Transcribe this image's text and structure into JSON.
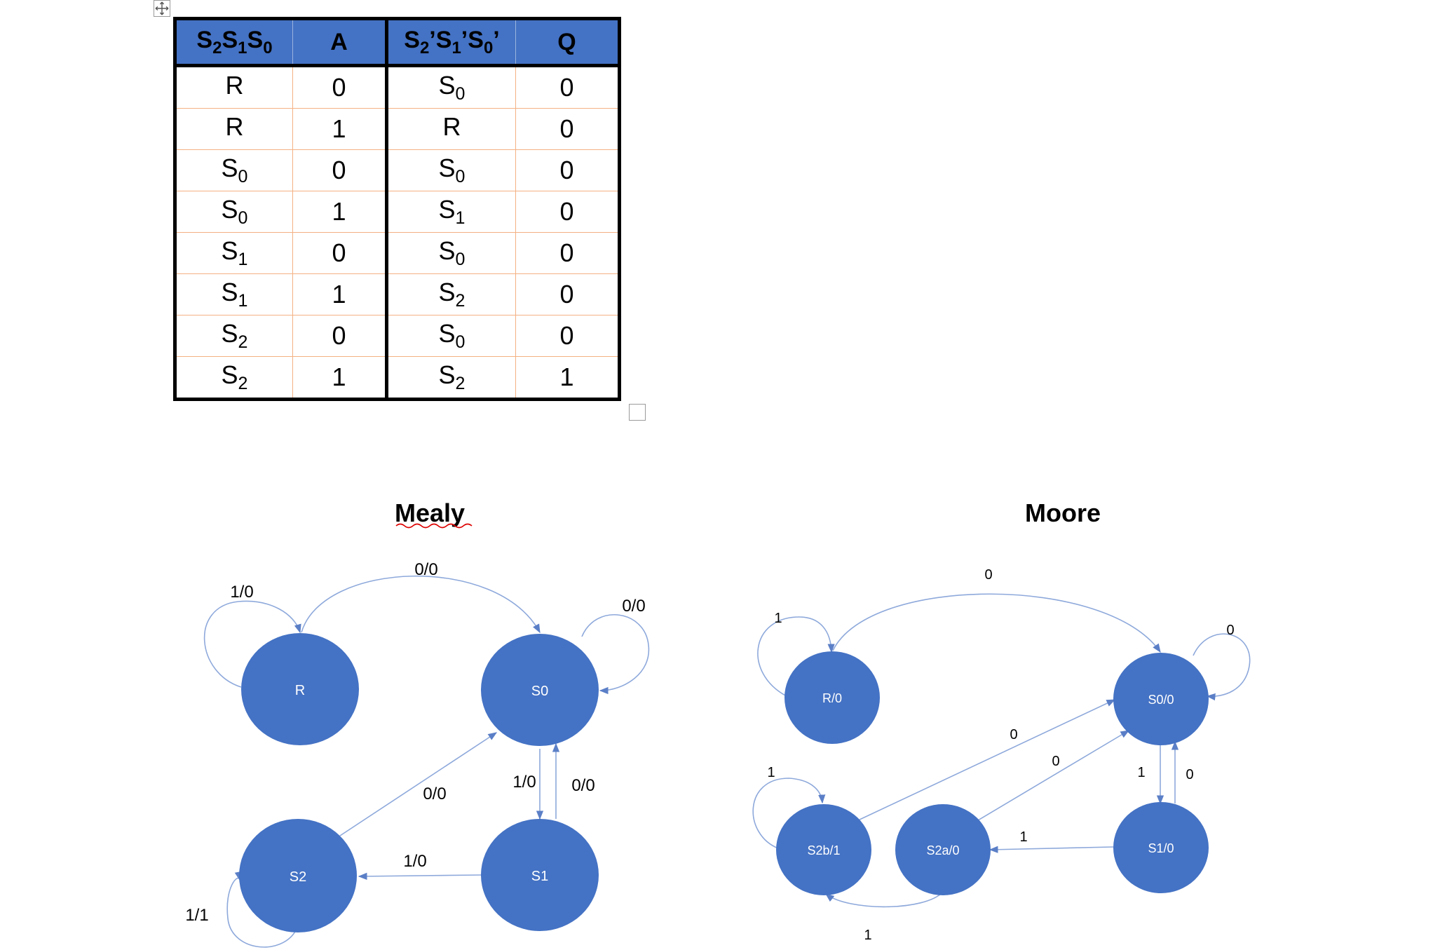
{
  "table": {
    "headers": [
      {
        "base": "S",
        "subs": [
          "2",
          "1",
          "0"
        ],
        "primes": false
      },
      {
        "text": "A"
      },
      {
        "base": "S",
        "subs": [
          "2",
          "1",
          "0"
        ],
        "primes": true
      },
      {
        "text": "Q"
      }
    ],
    "rows": [
      {
        "state": {
          "b": "R",
          "s": ""
        },
        "a": "0",
        "next": {
          "b": "S",
          "s": "0"
        },
        "q": "0"
      },
      {
        "state": {
          "b": "R",
          "s": ""
        },
        "a": "1",
        "next": {
          "b": "R",
          "s": ""
        },
        "q": "0"
      },
      {
        "state": {
          "b": "S",
          "s": "0"
        },
        "a": "0",
        "next": {
          "b": "S",
          "s": "0"
        },
        "q": "0"
      },
      {
        "state": {
          "b": "S",
          "s": "0"
        },
        "a": "1",
        "next": {
          "b": "S",
          "s": "1"
        },
        "q": "0"
      },
      {
        "state": {
          "b": "S",
          "s": "1"
        },
        "a": "0",
        "next": {
          "b": "S",
          "s": "0"
        },
        "q": "0"
      },
      {
        "state": {
          "b": "S",
          "s": "1"
        },
        "a": "1",
        "next": {
          "b": "S",
          "s": "2"
        },
        "q": "0"
      },
      {
        "state": {
          "b": "S",
          "s": "2"
        },
        "a": "0",
        "next": {
          "b": "S",
          "s": "0"
        },
        "q": "0"
      },
      {
        "state": {
          "b": "S",
          "s": "2"
        },
        "a": "1",
        "next": {
          "b": "S",
          "s": "2"
        },
        "q": "1"
      }
    ]
  },
  "mealy": {
    "title": "Mealy",
    "states": {
      "r": "R",
      "s0": "S0",
      "s1": "S1",
      "s2": "S2"
    },
    "edges": {
      "r_self": "1/0",
      "r_s0": "0/0",
      "s0_self": "0/0",
      "s0_s1": "1/0",
      "s1_s0": "0/0",
      "s2_s0": "0/0",
      "s1_s2": "1/0",
      "s2_self": "1/1"
    }
  },
  "moore": {
    "title": "Moore",
    "states": {
      "r": "R/0",
      "s0": "S0/0",
      "s1": "S1/0",
      "s2a": "S2a/0",
      "s2b": "S2b/1"
    },
    "edges": {
      "r_s0": "0",
      "r_self": "1",
      "s0_self": "0",
      "s2b_s0": "0",
      "s2a_s0": "0",
      "s0_s1": "1",
      "s1_s0": "0",
      "s1_s2a": "1",
      "s2b_self": "1",
      "s2a_s2b": "1"
    }
  },
  "colors": {
    "node": "#4472C4",
    "edge": "#8EA9DB",
    "header": "#4472C4"
  }
}
